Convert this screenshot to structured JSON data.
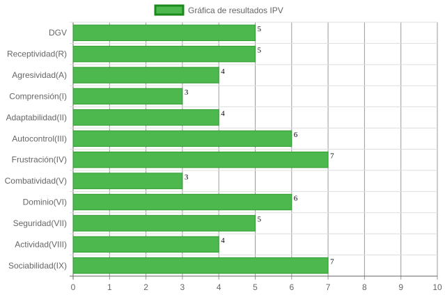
{
  "chart_data": {
    "type": "bar",
    "orientation": "horizontal",
    "categories": [
      "DGV",
      "Receptividad(R)",
      "Agresividad(A)",
      "Comprensión(I)",
      "Adaptabilidad(II)",
      "Autocontrol(III)",
      "Frustración(IV)",
      "Combatividad(V)",
      "Dominio(VI)",
      "Seguridad(VII)",
      "Actividad(VIII)",
      "Sociabilidad(IX)"
    ],
    "series": [
      {
        "name": "Gráfica de resultados IPV",
        "values": [
          5,
          5,
          4,
          3,
          4,
          6,
          7,
          3,
          6,
          5,
          4,
          7
        ]
      }
    ],
    "xlim": [
      0,
      10
    ],
    "xticks": [
      0,
      1,
      2,
      3,
      4,
      5,
      6,
      7,
      8,
      9,
      10
    ],
    "grid": true,
    "legend_position": "top",
    "show_data_labels": true
  },
  "colors": {
    "bar_fill": "#4db84d",
    "bar_border": "#2e9a2e",
    "legend_border": "#1a8a1a",
    "grid": "#dddddd",
    "axis": "#666666"
  }
}
